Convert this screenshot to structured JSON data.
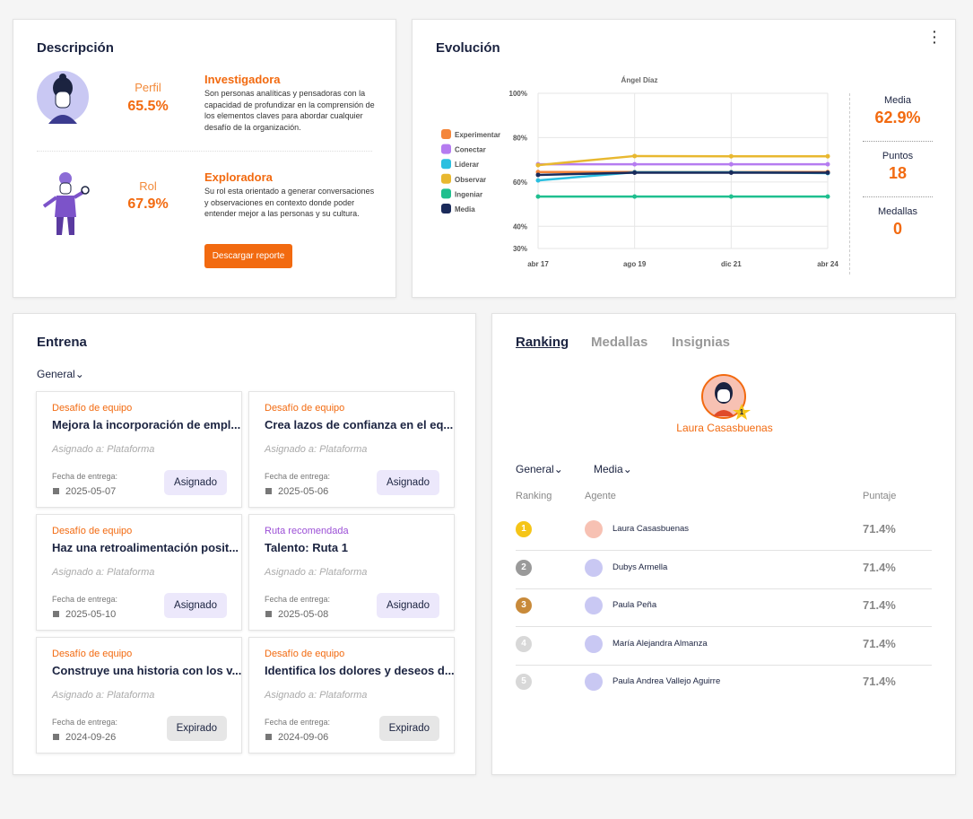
{
  "description": {
    "title": "Descripción",
    "profile": {
      "label": "Perfil",
      "value": "65.5%",
      "name": "Investigadora",
      "text": "Son personas analíticas y pensadoras con la capacidad de profundizar en la comprensión de los elementos claves para abordar cualquier desafío de la organización."
    },
    "role": {
      "label": "Rol",
      "value": "67.9%",
      "name": "Exploradora",
      "text": "Su rol esta orientado a generar conversaciones y observaciones en contexto donde poder entender mejor a las personas y su cultura."
    },
    "button": "Descargar reporte"
  },
  "evolution": {
    "title": "Evolución",
    "stats": [
      {
        "label": "Media",
        "value": "62.9%"
      },
      {
        "label": "Puntos",
        "value": "18"
      },
      {
        "label": "Medallas",
        "value": "0"
      }
    ]
  },
  "chart_data": {
    "type": "line",
    "title": "Ángel Díaz",
    "categories": [
      "abr 17",
      "ago 19",
      "dic 21",
      "abr 24"
    ],
    "ylim": [
      30,
      100
    ],
    "yticks": [
      {
        "value": 30,
        "label": "30%"
      },
      {
        "value": 40,
        "label": "40%"
      },
      {
        "value": 60,
        "label": "60%"
      },
      {
        "value": 80,
        "label": "80%"
      },
      {
        "value": 100,
        "label": "100%"
      }
    ],
    "grid": true,
    "series": [
      {
        "name": "Experimentar",
        "color": "#f4863b",
        "values": [
          64.5,
          64.5,
          64.5,
          64.5
        ]
      },
      {
        "name": "Conectar",
        "color": "#b57cf0",
        "values": [
          68,
          68,
          68,
          68
        ]
      },
      {
        "name": "Liderar",
        "color": "#2bbfe0",
        "values": [
          60.7,
          64.4,
          64.4,
          64
        ]
      },
      {
        "name": "Observar",
        "color": "#e8b830",
        "values": [
          67.6,
          71.7,
          71.6,
          71.6
        ]
      },
      {
        "name": "Ingeniar",
        "color": "#1fbf8f",
        "values": [
          53.4,
          53.4,
          53.4,
          53.4
        ]
      },
      {
        "name": "Media",
        "color": "#1a2a5a",
        "values": [
          63.2,
          64.2,
          64.2,
          64.2
        ]
      }
    ]
  },
  "train": {
    "title": "Entrena",
    "filter": "General",
    "cards": [
      {
        "type": "Desafío de equipo",
        "title": "Mejora la incorporación de empl...",
        "assigned": "Asignado a: Plataforma",
        "date_label": "Fecha de entrega:",
        "date": "2025-05-07",
        "status": "Asignado"
      },
      {
        "type": "Desafío de equipo",
        "title": "Crea lazos de confianza en el eq...",
        "assigned": "Asignado a: Plataforma",
        "date_label": "Fecha de entrega:",
        "date": "2025-05-06",
        "status": "Asignado"
      },
      {
        "type": "Desafío de equipo",
        "title": "Haz una retroalimentación posit...",
        "assigned": "Asignado a: Plataforma",
        "date_label": "Fecha de entrega:",
        "date": "2025-05-10",
        "status": "Asignado"
      },
      {
        "type": "Ruta recomendada",
        "title": "Talento: Ruta 1",
        "assigned": "Asignado a: Plataforma",
        "date_label": "Fecha de entrega:",
        "date": "2025-05-08",
        "status": "Asignado"
      },
      {
        "type": "Desafío de equipo",
        "title": "Construye una historia con los v...",
        "assigned": "Asignado a: Plataforma",
        "date_label": "Fecha de entrega:",
        "date": "2024-09-26",
        "status": "Expirado"
      },
      {
        "type": "Desafío de equipo",
        "title": "Identifica los dolores y deseos d...",
        "assigned": "Asignado a: Plataforma",
        "date_label": "Fecha de entrega:",
        "date": "2024-09-06",
        "status": "Expirado"
      }
    ]
  },
  "ranking": {
    "tabs": [
      "Ranking",
      "Medallas",
      "Insignias"
    ],
    "leader": {
      "name": "Laura Casasbuenas",
      "badge": "1"
    },
    "filters": [
      "General",
      "Media"
    ],
    "headers": [
      "Ranking",
      "Agente",
      "Puntaje"
    ],
    "rows": [
      {
        "rank": "1",
        "name": "Laura Casasbuenas",
        "score": "71.4%"
      },
      {
        "rank": "2",
        "name": "Dubys Armella",
        "score": "71.4%"
      },
      {
        "rank": "3",
        "name": "Paula Peña",
        "score": "71.4%"
      },
      {
        "rank": "4",
        "name": "María Alejandra Almanza",
        "score": "71.4%"
      },
      {
        "rank": "5",
        "name": "Paula Andrea Vallejo Aguirre",
        "score": "71.4%"
      }
    ]
  }
}
